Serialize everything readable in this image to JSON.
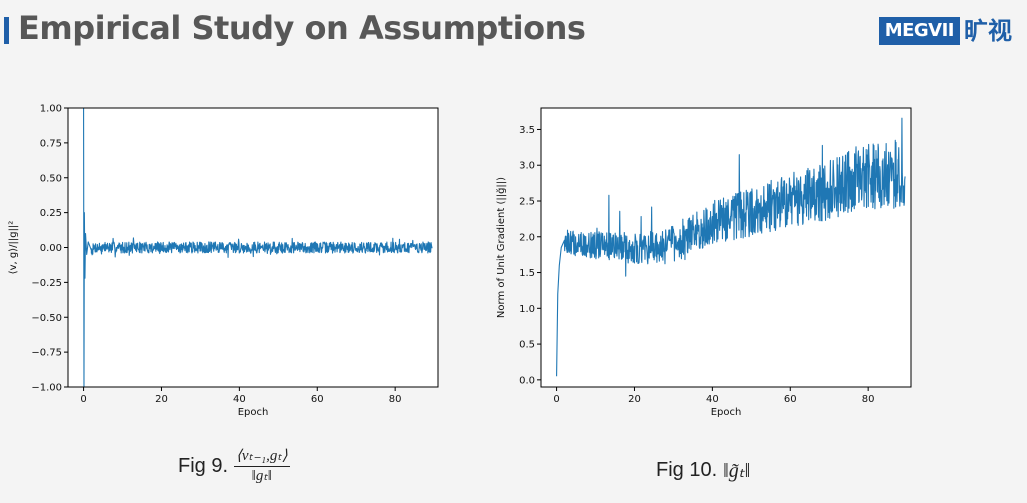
{
  "slide": {
    "title": "Empirical Study on Assumptions",
    "logo_text": "MEGVII",
    "logo_cn": "旷视"
  },
  "colors": {
    "accent": "#1f5fa8",
    "series": "#1f77b4",
    "title_text": "#575757"
  },
  "captions": {
    "fig9_label": "Fig 9.",
    "fig9_numerator": "⟨vₜ₋₁,gₜ⟩",
    "fig9_denominator": "‖gₜ‖",
    "fig10_label": "Fig 10.",
    "fig10_formula": "‖g̃ₜ‖"
  },
  "chart_data": [
    {
      "type": "line",
      "title": "",
      "xlabel": "Epoch",
      "ylabel": "⟨v, g⟩/||g||²",
      "xlim": [
        -4,
        91
      ],
      "ylim": [
        -1.0,
        1.0
      ],
      "xticks": [
        0,
        20,
        40,
        60,
        80
      ],
      "yticks": [
        -1.0,
        -0.75,
        -0.5,
        -0.25,
        0.0,
        0.25,
        0.5,
        0.75,
        1.0
      ],
      "ytick_labels": [
        "−1.00",
        "−0.75",
        "−0.50",
        "−0.25",
        "0.00",
        "0.25",
        "0.50",
        "0.75",
        "1.00"
      ],
      "grid": false,
      "series": [
        {
          "x": [
            0,
            0.1,
            0.2,
            0.35,
            0.5,
            0.8,
            1.2,
            2,
            3,
            5,
            10,
            20,
            30,
            40,
            50,
            60,
            70,
            80,
            89.5
          ],
          "y": [
            1.0,
            -1.0,
            0.25,
            -0.22,
            0.1,
            -0.05,
            0.04,
            -0.02,
            0.0,
            0.0,
            0.0,
            0.0,
            0.0,
            0.0,
            0.0,
            0.0,
            0.0,
            0.0,
            0.0
          ],
          "noise_band": 0.04
        }
      ]
    },
    {
      "type": "line",
      "title": "",
      "xlabel": "Epoch",
      "ylabel": "Norm of Unit Gradient (||ğ||)",
      "xlim": [
        -4,
        91
      ],
      "ylim": [
        -0.1,
        3.8
      ],
      "xticks": [
        0,
        20,
        40,
        60,
        80
      ],
      "yticks": [
        0.0,
        0.5,
        1.0,
        1.5,
        2.0,
        2.5,
        3.0,
        3.5
      ],
      "ytick_labels": [
        "0.0",
        "0.5",
        "1.0",
        "1.5",
        "2.0",
        "2.5",
        "3.0",
        "3.5"
      ],
      "grid": false,
      "series": [
        {
          "x": [
            0,
            0.3,
            0.7,
            1.2,
            2,
            5,
            10,
            20,
            25,
            30,
            35,
            40,
            50,
            60,
            70,
            80,
            89.5
          ],
          "y": [
            0.05,
            1.2,
            1.6,
            1.85,
            1.95,
            1.9,
            1.88,
            1.85,
            1.83,
            1.9,
            2.05,
            2.2,
            2.35,
            2.5,
            2.65,
            2.85,
            2.9
          ],
          "noise_band": 0.25
        }
      ]
    }
  ]
}
